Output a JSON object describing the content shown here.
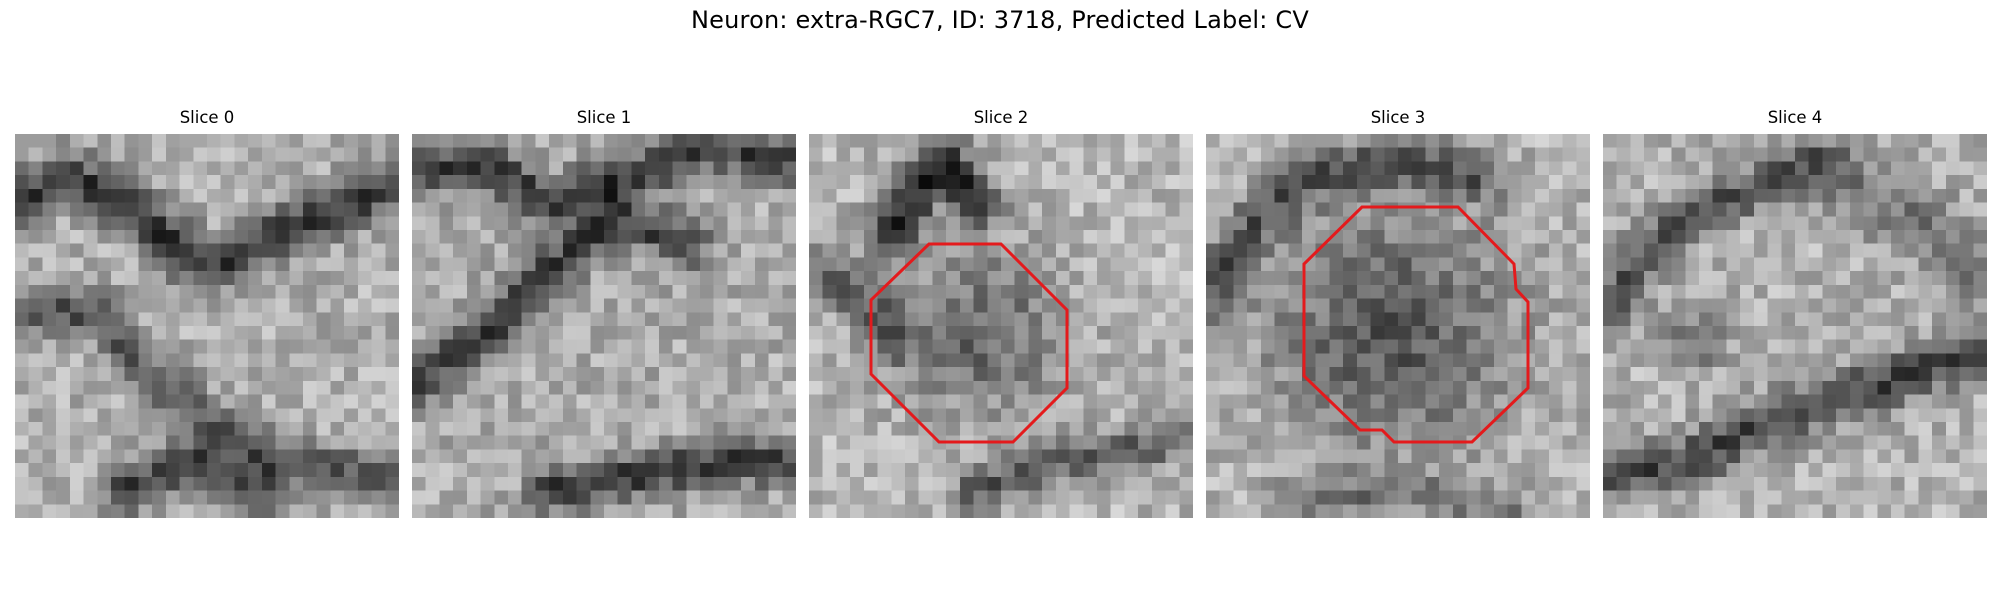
{
  "figure": {
    "title": "Neuron: extra-RGC7, ID: 3718, Predicted Label: CV"
  },
  "colors": {
    "contour": "#e41a1c",
    "background": "#ffffff"
  },
  "slices": [
    {
      "title": "Slice 0",
      "has_contour": false
    },
    {
      "title": "Slice 1",
      "has_contour": false
    },
    {
      "title": "Slice 2",
      "has_contour": true
    },
    {
      "title": "Slice 3",
      "has_contour": true
    },
    {
      "title": "Slice 4",
      "has_contour": false
    }
  ]
}
